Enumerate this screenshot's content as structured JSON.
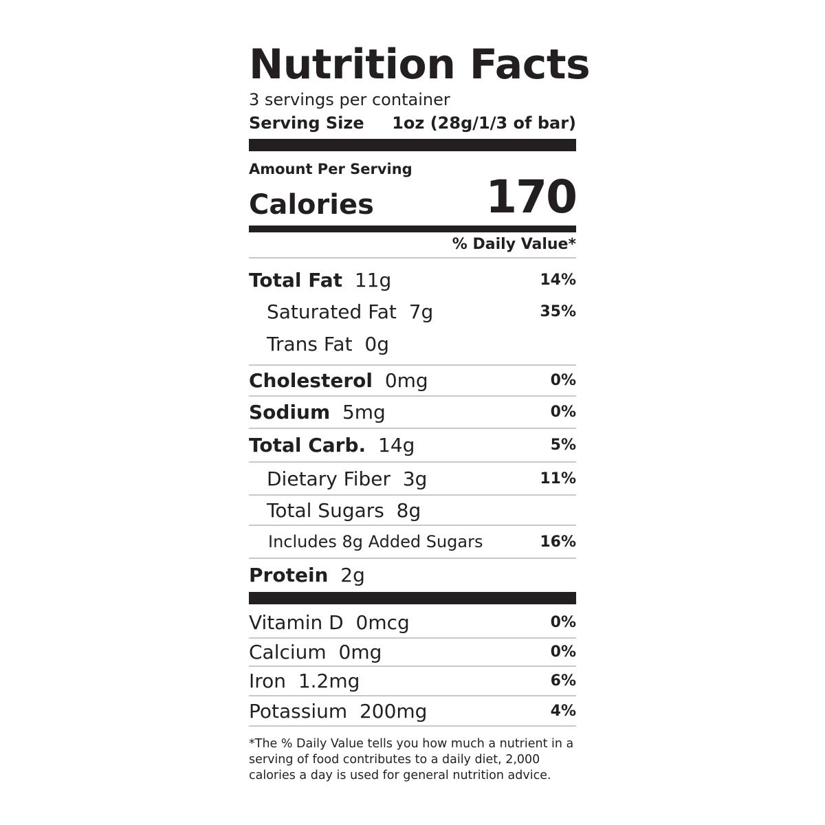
{
  "label": {
    "title": "Nutrition Facts",
    "servings_per_container": "3 servings per container",
    "serving_size_label": "Serving Size",
    "serving_size_value": "1oz (28g/1/3 of bar)",
    "amount_per_serving": "Amount Per Serving",
    "calories_label": "Calories",
    "calories_value": "170",
    "daily_value_header": "% Daily Value*",
    "total_fat": {
      "label": "Total Fat",
      "amount": "11g",
      "dv": "14%"
    },
    "saturated_fat": {
      "label": "Saturated Fat",
      "amount": "7g",
      "dv": "35%"
    },
    "trans_fat": {
      "label": "Trans Fat",
      "amount": "0g"
    },
    "cholesterol": {
      "label": "Cholesterol",
      "amount": "0mg",
      "dv": "0%"
    },
    "sodium": {
      "label": "Sodium",
      "amount": "5mg",
      "dv": "0%"
    },
    "total_carb": {
      "label": "Total Carb.",
      "amount": "14g",
      "dv": "5%"
    },
    "dietary_fiber": {
      "label": "Dietary Fiber",
      "amount": "3g",
      "dv": "11%"
    },
    "total_sugars": {
      "label": "Total Sugars",
      "amount": "8g"
    },
    "added_sugars": {
      "label": "Includes 8g Added Sugars",
      "dv": "16%"
    },
    "protein": {
      "label": "Protein",
      "amount": "2g"
    },
    "vitamin_d": {
      "label": "Vitamin D",
      "amount": "0mcg",
      "dv": "0%"
    },
    "calcium": {
      "label": "Calcium",
      "amount": "0mg",
      "dv": "0%"
    },
    "iron": {
      "label": "Iron",
      "amount": "1.2mg",
      "dv": "6%"
    },
    "potassium": {
      "label": "Potassium",
      "amount": "200mg",
      "dv": "4%"
    },
    "footnote": "*The % Daily Value tells you how much a nutrient in a serving of food contributes to a daily diet, 2,000 calories a day is used for general nutrition advice."
  },
  "colors": {
    "ink": "#231f20",
    "rule": "#c8c8c8",
    "background": "#ffffff"
  }
}
